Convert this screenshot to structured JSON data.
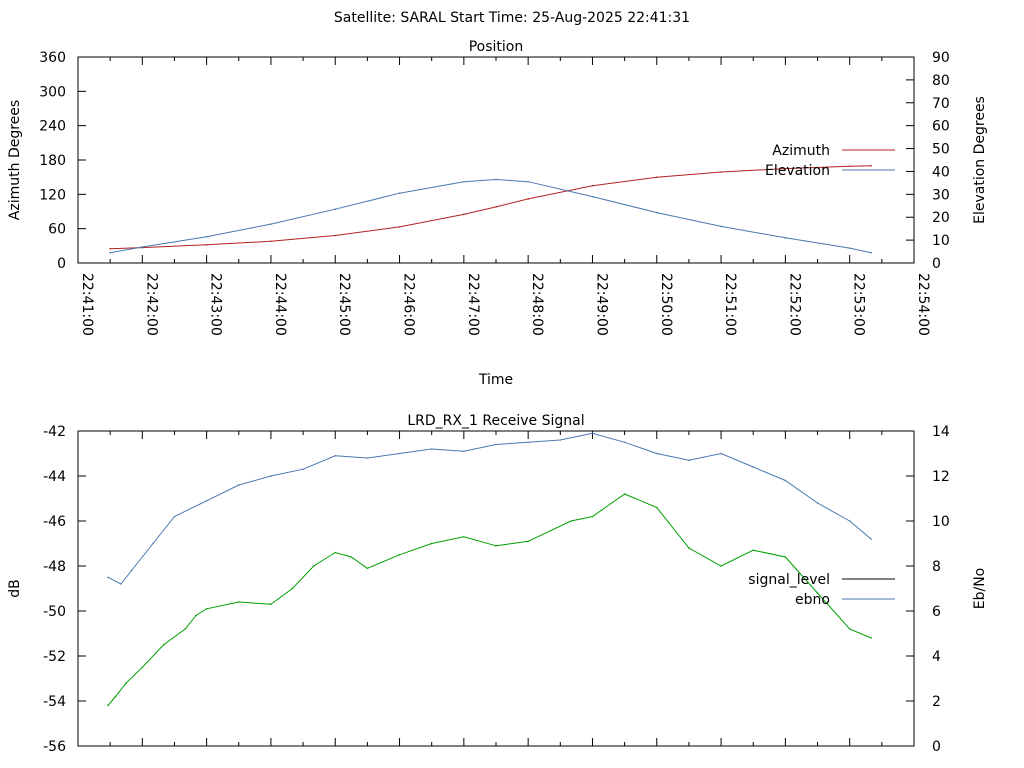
{
  "page_title": "Satellite: SARAL     Start Time: 25-Aug-2025 22:41:31",
  "chart_data": [
    {
      "type": "line",
      "title": "Position",
      "xlabel": "Time",
      "ylabel": "Azimuth Degrees",
      "y2label": "Elevation Degrees",
      "xlim": [
        "22:41:00",
        "22:54:00"
      ],
      "ylim": [
        0,
        360
      ],
      "y2lim": [
        0,
        90
      ],
      "x_ticks": [
        "22:41:00",
        "22:42:00",
        "22:43:00",
        "22:44:00",
        "22:45:00",
        "22:46:00",
        "22:47:00",
        "22:48:00",
        "22:49:00",
        "22:50:00",
        "22:51:00",
        "22:52:00",
        "22:53:00",
        "22:54:00"
      ],
      "y_ticks": [
        "0",
        "60",
        "120",
        "180",
        "240",
        "300",
        "360"
      ],
      "y2_ticks": [
        "0",
        "10",
        "20",
        "30",
        "40",
        "50",
        "60",
        "70",
        "80",
        "90"
      ],
      "legend_position": "right",
      "series": [
        {
          "name": "Azimuth",
          "axis": "y",
          "color": "#b22222",
          "x": [
            "22:41:30",
            "22:42:00",
            "22:43:00",
            "22:44:00",
            "22:45:00",
            "22:46:00",
            "22:47:00",
            "22:47:30",
            "22:48:00",
            "22:49:00",
            "22:50:00",
            "22:51:00",
            "22:52:00",
            "22:53:00",
            "22:53:20"
          ],
          "values": [
            25,
            27,
            32,
            38,
            48,
            63,
            85,
            98,
            112,
            135,
            150,
            159,
            165,
            169,
            170
          ]
        },
        {
          "name": "Elevation",
          "axis": "y2",
          "color": "#4a78b0",
          "x": [
            "22:41:30",
            "22:42:00",
            "22:43:00",
            "22:44:00",
            "22:45:00",
            "22:46:00",
            "22:47:00",
            "22:47:30",
            "22:48:00",
            "22:49:00",
            "22:50:00",
            "22:51:00",
            "22:52:00",
            "22:53:00",
            "22:53:20"
          ],
          "values": [
            4.5,
            7,
            11.5,
            17,
            23.5,
            30.5,
            35.5,
            36.5,
            35.5,
            29,
            22,
            16,
            11,
            6.5,
            4.5
          ]
        }
      ]
    },
    {
      "type": "line",
      "title": "LRD_RX_1 Receive Signal",
      "ylabel": "dB",
      "y2label": "Eb/No",
      "ylim": [
        -56,
        -42
      ],
      "y2lim": [
        0,
        14
      ],
      "y_ticks": [
        "-56",
        "-54",
        "-52",
        "-50",
        "-48",
        "-46",
        "-44",
        "-42"
      ],
      "y2_ticks": [
        "0",
        "2",
        "4",
        "6",
        "8",
        "10",
        "12",
        "14"
      ],
      "legend_position": "right",
      "series": [
        {
          "name": "signal_level",
          "axis": "y",
          "color": "#00a000",
          "legend_color": "#000000",
          "x": [
            "22:41:28",
            "22:41:35",
            "22:41:45",
            "22:42:00",
            "22:42:20",
            "22:42:40",
            "22:42:50",
            "22:43:00",
            "22:43:30",
            "22:44:00",
            "22:44:20",
            "22:44:40",
            "22:45:00",
            "22:45:15",
            "22:45:30",
            "22:46:00",
            "22:46:30",
            "22:47:00",
            "22:47:30",
            "22:48:00",
            "22:48:40",
            "22:49:00",
            "22:49:30",
            "22:50:00",
            "22:50:30",
            "22:51:00",
            "22:51:30",
            "22:52:00",
            "22:52:30",
            "22:53:00",
            "22:53:20"
          ],
          "values": [
            -54.2,
            -53.8,
            -53.2,
            -52.5,
            -51.5,
            -50.8,
            -50.2,
            -49.9,
            -49.6,
            -49.7,
            -49.0,
            -48.0,
            -47.4,
            -47.6,
            -48.1,
            -47.5,
            -47.0,
            -46.7,
            -47.1,
            -46.9,
            -46.0,
            -45.8,
            -44.8,
            -45.4,
            -47.2,
            -48.0,
            -47.3,
            -47.6,
            -49.2,
            -50.8,
            -51.2
          ]
        },
        {
          "name": "ebno",
          "axis": "y2",
          "color": "#4a78b0",
          "x": [
            "22:41:28",
            "22:41:40",
            "22:41:50",
            "22:42:10",
            "22:42:30",
            "22:43:00",
            "22:43:30",
            "22:44:00",
            "22:44:30",
            "22:45:00",
            "22:45:30",
            "22:46:00",
            "22:46:30",
            "22:47:00",
            "22:47:30",
            "22:48:00",
            "22:48:30",
            "22:49:00",
            "22:49:30",
            "22:50:00",
            "22:50:30",
            "22:51:00",
            "22:51:30",
            "22:52:00",
            "22:52:30",
            "22:53:00",
            "22:53:20"
          ],
          "values": [
            7.5,
            7.2,
            7.8,
            9.0,
            10.2,
            10.9,
            11.6,
            12.0,
            12.3,
            12.9,
            12.8,
            13.0,
            13.2,
            13.1,
            13.4,
            13.5,
            13.6,
            13.9,
            13.5,
            13.0,
            12.7,
            13.0,
            12.4,
            11.8,
            10.8,
            10.0,
            9.2
          ]
        }
      ]
    }
  ]
}
